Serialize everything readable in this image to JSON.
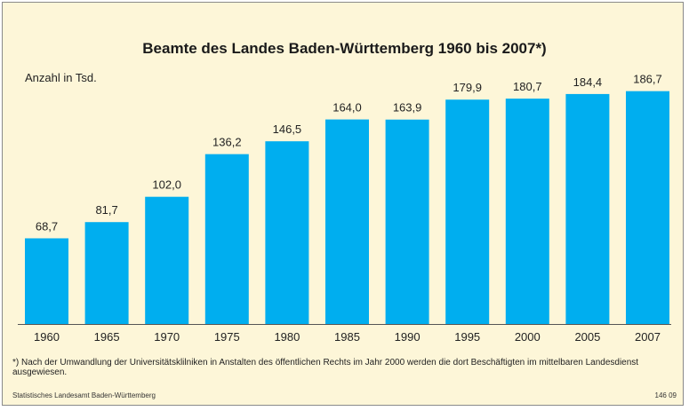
{
  "chart_data": {
    "type": "bar",
    "title": "Beamte des Landes Baden-Württemberg 1960 bis 2007*)",
    "ylabel": "Anzahl in Tsd.",
    "xlabel": "",
    "categories": [
      "1960",
      "1965",
      "1970",
      "1975",
      "1980",
      "1985",
      "1990",
      "1995",
      "2000",
      "2005",
      "2007"
    ],
    "values": [
      68.7,
      81.7,
      102.0,
      136.2,
      146.5,
      164.0,
      163.9,
      179.9,
      180.7,
      184.4,
      186.7
    ],
    "value_labels": [
      "68,7",
      "81,7",
      "102,0",
      "136,2",
      "146,5",
      "164,0",
      "163,9",
      "179,9",
      "180,7",
      "184,4",
      "186,7"
    ],
    "ylim": [
      0,
      200
    ],
    "grid": false,
    "legend": "none",
    "bar_color": "#00aeef",
    "background_color": "#fdf6d8"
  },
  "footnote": "*) Nach der Umwandlung der Universitätsklilniken in Anstalten des öffentlichen Rechts im Jahr 2000 werden die dort Beschäftigten im mittelbaren Landesdienst ausgewiesen.",
  "source": "Statistisches Landesamt Baden-Württemberg",
  "code": "146 09"
}
